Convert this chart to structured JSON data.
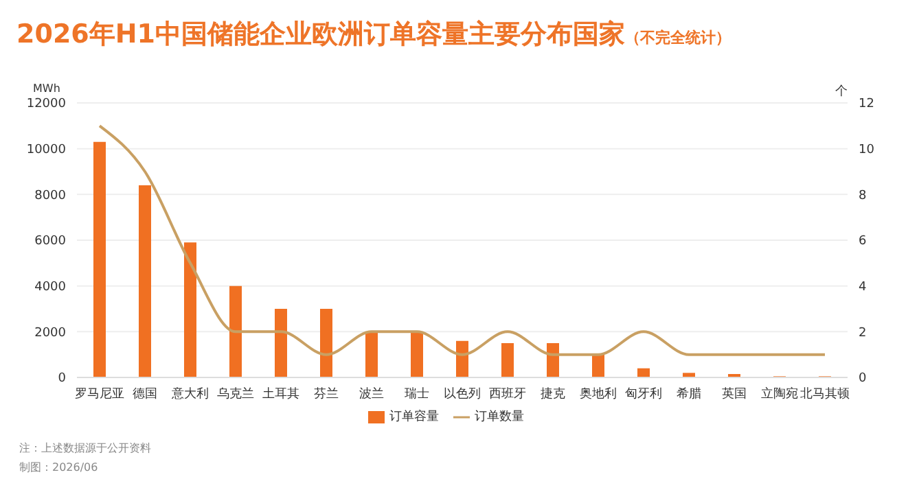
{
  "chart_data": {
    "type": "bar",
    "title": "2026年H1中国储能企业欧洲订单容量主要分布国家",
    "subtitle": "（不完全统计）",
    "ylabel": "MWh",
    "y2label": "个",
    "categories": [
      "罗马尼亚",
      "德国",
      "意大利",
      "乌克兰",
      "土耳其",
      "芬兰",
      "波兰",
      "瑞士",
      "以色列",
      "西班牙",
      "捷克",
      "奥地利",
      "匈牙利",
      "希腊",
      "英国",
      "立陶宛",
      "北马其顿"
    ],
    "series": [
      {
        "name": "订单容量",
        "color": "#f07022",
        "values": [
          10300,
          8400,
          5900,
          4000,
          3000,
          3000,
          2000,
          2000,
          1600,
          1500,
          1500,
          1000,
          400,
          200,
          150,
          50,
          50
        ]
      },
      {
        "name": "订单数量",
        "type": "line",
        "axis": "y2",
        "color": "#c9a063",
        "values": [
          11,
          9,
          5,
          2,
          2,
          1,
          2,
          2,
          1,
          2,
          1,
          1,
          2,
          1,
          1,
          1,
          1
        ]
      }
    ],
    "ylim": [
      0,
      12000
    ],
    "yticks": [
      0,
      2000,
      4000,
      6000,
      8000,
      10000,
      12000
    ],
    "y2lim": [
      0,
      12
    ],
    "y2ticks": [
      0,
      2,
      4,
      6,
      8,
      10,
      12
    ],
    "grid": "y",
    "legend": "bottom",
    "marker": "none",
    "annotations": [
      "注：上述数据源于公开资料",
      "制图：2026/06"
    ]
  }
}
